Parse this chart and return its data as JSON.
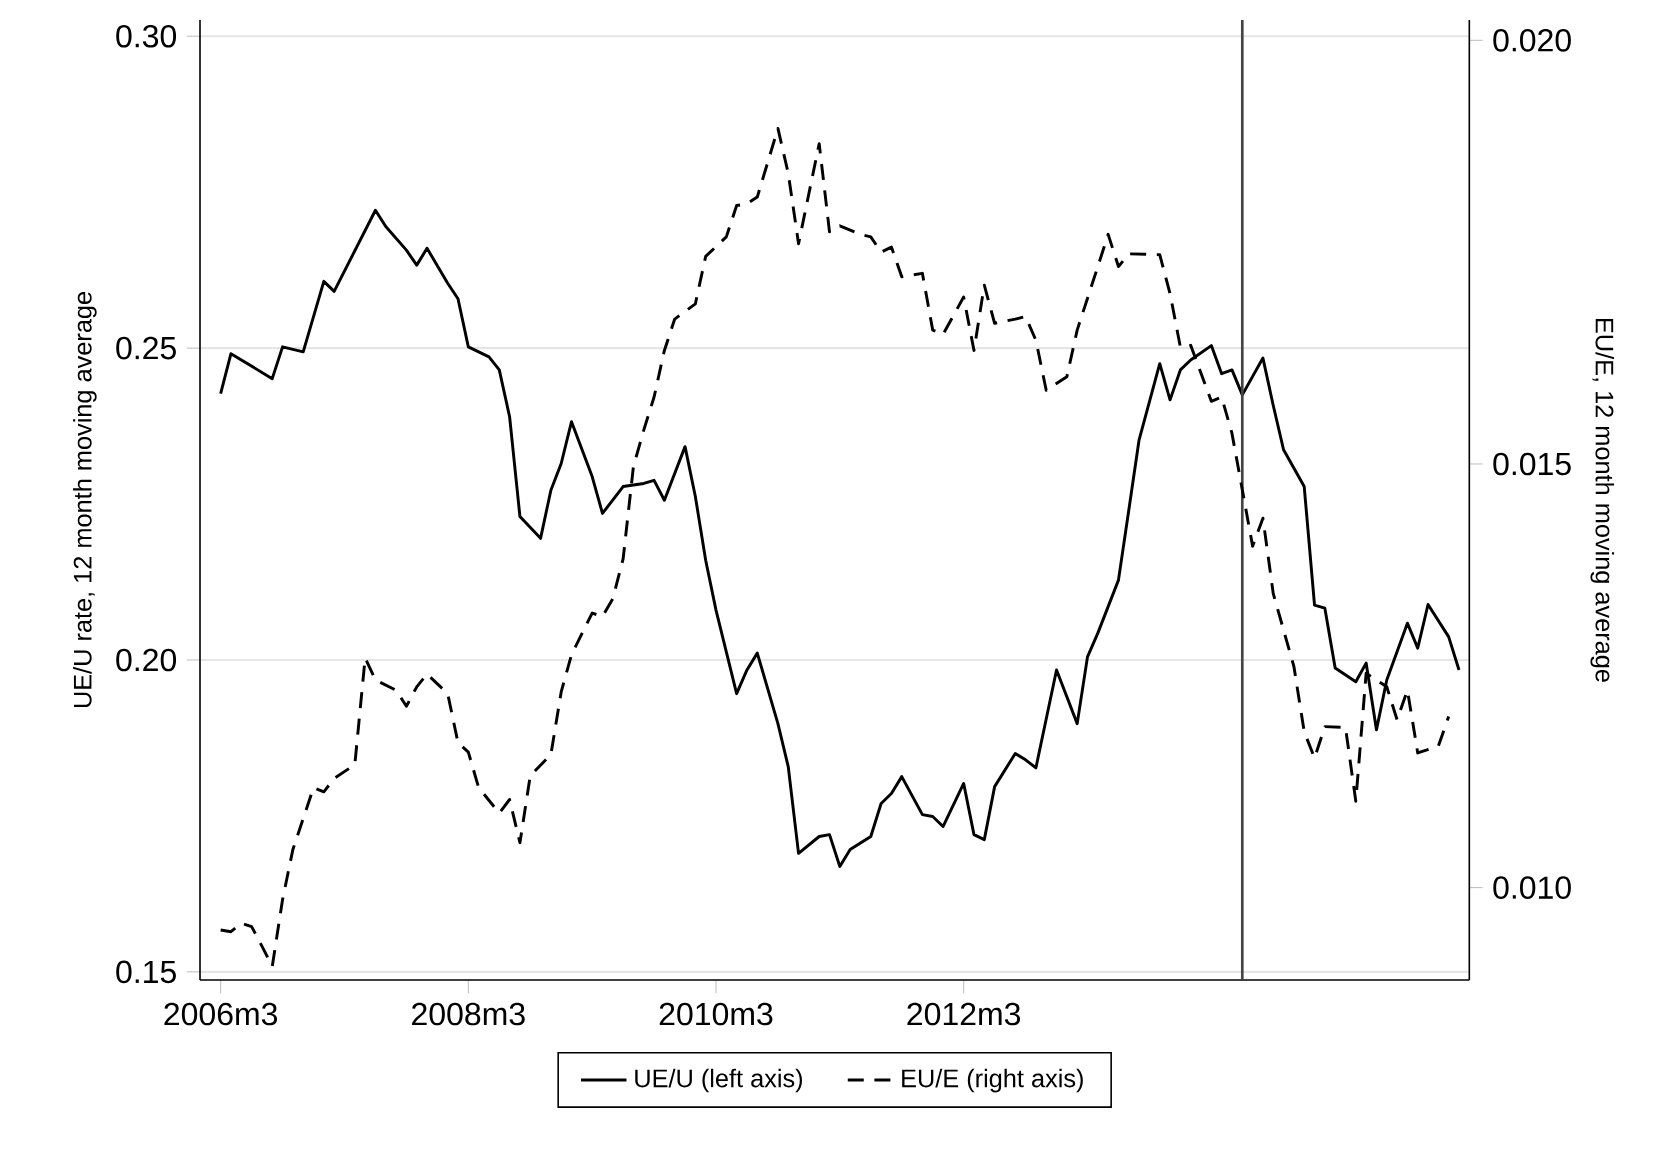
{
  "chart_data": {
    "type": "line",
    "xlim": [
      "2006-01",
      "2016-04"
    ],
    "xticks": [
      {
        "value": "2006-03",
        "label": "2006m3"
      },
      {
        "value": "2008-03",
        "label": "2008m3"
      },
      {
        "value": "2010-03",
        "label": "2010m3"
      },
      {
        "value": "2012-03",
        "label": "2012m3"
      }
    ],
    "ylim": [
      0.1487,
      0.3026
    ],
    "yticks": [
      {
        "value": 0.15,
        "label": "0.15"
      },
      {
        "value": 0.2,
        "label": "0.20"
      },
      {
        "value": 0.25,
        "label": "0.25"
      },
      {
        "value": 0.3,
        "label": "0.30"
      }
    ],
    "y2lim": [
      0.00891,
      0.02024
    ],
    "y2ticks": [
      {
        "value": 0.01,
        "label": "0.010"
      },
      {
        "value": 0.015,
        "label": "0.015"
      },
      {
        "value": 0.02,
        "label": "0.020"
      }
    ],
    "ylabel": "UE/U rate, 12 month moving average",
    "y2label": "EU/E, 12 month moving average",
    "grid": "y",
    "legend": "bottom",
    "ref_lines": [
      {
        "axis": "x",
        "value": "2014-06",
        "color": "#444444"
      }
    ],
    "series": [
      {
        "name": "UE/U (left axis)",
        "color": "#000000",
        "line_style": "solid",
        "x": [
          "2006-03",
          "2006-04",
          "2006-08",
          "2006-09",
          "2006-11",
          "2007-01",
          "2007-02",
          "2007-06",
          "2007-07",
          "2007-09",
          "2007-10",
          "2007-11",
          "2008-01",
          "2008-02",
          "2008-03",
          "2008-05",
          "2008-06",
          "2008-07",
          "2008-08",
          "2008-10",
          "2008-11",
          "2008-12",
          "2009-01",
          "2009-03",
          "2009-04",
          "2009-06",
          "2009-08",
          "2009-09",
          "2009-10",
          "2009-12",
          "2010-01",
          "2010-02",
          "2010-03",
          "2010-05",
          "2010-06",
          "2010-07",
          "2010-09",
          "2010-10",
          "2010-11",
          "2011-01",
          "2011-02",
          "2011-03",
          "2011-04",
          "2011-06",
          "2011-07",
          "2011-08",
          "2011-09",
          "2011-11",
          "2011-12",
          "2012-01",
          "2012-03",
          "2012-04",
          "2012-05",
          "2012-06",
          "2012-08",
          "2012-09",
          "2012-10",
          "2012-12",
          "2013-02",
          "2013-03",
          "2013-04",
          "2013-06",
          "2013-07",
          "2013-08",
          "2013-10",
          "2013-11",
          "2013-12",
          "2014-01",
          "2014-03",
          "2014-04",
          "2014-05",
          "2014-06",
          "2014-08",
          "2014-09",
          "2014-10",
          "2014-12",
          "2015-01",
          "2015-02",
          "2015-03",
          "2015-05",
          "2015-06",
          "2015-07",
          "2015-08",
          "2015-10",
          "2015-11",
          "2015-12",
          "2016-02",
          "2016-03"
        ],
        "values": [
          0.2427,
          0.2491,
          0.2451,
          0.2502,
          0.2494,
          0.2607,
          0.2591,
          0.2721,
          0.2695,
          0.2657,
          0.2633,
          0.266,
          0.2604,
          0.2579,
          0.2502,
          0.2486,
          0.2465,
          0.239,
          0.223,
          0.2195,
          0.2272,
          0.2315,
          0.2382,
          0.2294,
          0.2235,
          0.2278,
          0.2283,
          0.2288,
          0.2256,
          0.2342,
          0.2262,
          0.216,
          0.208,
          0.1946,
          0.1984,
          0.2011,
          0.1898,
          0.1829,
          0.169,
          0.1717,
          0.172,
          0.1669,
          0.1696,
          0.1717,
          0.177,
          0.1786,
          0.1813,
          0.1752,
          0.1749,
          0.1733,
          0.1802,
          0.172,
          0.1712,
          0.1797,
          0.185,
          0.184,
          0.1827,
          0.1984,
          0.1898,
          0.2005,
          0.2043,
          0.2128,
          0.224,
          0.2353,
          0.2475,
          0.2417,
          0.2465,
          0.2481,
          0.2504,
          0.2459,
          0.2465,
          0.2425,
          0.2484,
          0.2408,
          0.2337,
          0.2278,
          0.2088,
          0.2083,
          0.1987,
          0.1965,
          0.1995,
          0.1888,
          0.1968,
          0.2059,
          0.2019,
          0.2089,
          0.2037,
          0.1984
        ]
      },
      {
        "name": "EU/E (right axis)",
        "color": "#000000",
        "line_style": "dashed",
        "axis": "y2",
        "x": [
          "2006-03",
          "2006-04",
          "2006-05",
          "2006-06",
          "2006-07",
          "2006-08",
          "2006-09",
          "2006-10",
          "2006-12",
          "2007-01",
          "2007-02",
          "2007-04",
          "2007-05",
          "2007-06",
          "2007-08",
          "2007-09",
          "2007-10",
          "2007-11",
          "2008-01",
          "2008-02",
          "2008-03",
          "2008-04",
          "2008-06",
          "2008-07",
          "2008-08",
          "2008-09",
          "2008-11",
          "2008-12",
          "2009-01",
          "2009-03",
          "2009-04",
          "2009-05",
          "2009-06",
          "2009-07",
          "2009-08",
          "2009-09",
          "2009-10",
          "2009-11",
          "2010-01",
          "2010-02",
          "2010-04",
          "2010-05",
          "2010-06",
          "2010-07",
          "2010-09",
          "2010-10",
          "2010-11",
          "2011-01",
          "2011-02",
          "2011-03",
          "2011-05",
          "2011-06",
          "2011-07",
          "2011-08",
          "2011-09",
          "2011-11",
          "2011-12",
          "2012-01",
          "2012-03",
          "2012-04",
          "2012-05",
          "2012-06",
          "2012-08",
          "2012-09",
          "2012-10",
          "2012-11",
          "2013-01",
          "2013-02",
          "2013-04",
          "2013-05",
          "2013-06",
          "2013-07",
          "2013-10",
          "2013-11",
          "2013-12",
          "2014-01",
          "2014-03",
          "2014-04",
          "2014-05",
          "2014-07",
          "2014-08",
          "2014-09",
          "2014-11",
          "2014-12",
          "2015-01",
          "2015-02",
          "2015-04",
          "2015-05",
          "2015-06",
          "2015-08",
          "2015-09",
          "2015-10",
          "2015-11",
          "2016-01",
          "2016-02"
        ],
        "values": [
          0.0095,
          0.00948,
          0.00958,
          0.00954,
          0.00931,
          0.00907,
          0.00986,
          0.01045,
          0.01118,
          0.01113,
          0.01129,
          0.01145,
          0.01271,
          0.01245,
          0.01233,
          0.01214,
          0.01237,
          0.01252,
          0.01229,
          0.01171,
          0.0116,
          0.01118,
          0.01088,
          0.01104,
          0.01053,
          0.01132,
          0.01157,
          0.01231,
          0.01275,
          0.01324,
          0.0132,
          0.01341,
          0.01388,
          0.01497,
          0.0154,
          0.01579,
          0.01634,
          0.01671,
          0.01689,
          0.01745,
          0.01768,
          0.01805,
          0.01807,
          0.01815,
          0.01896,
          0.01843,
          0.0176,
          0.01878,
          0.01774,
          0.01781,
          0.01771,
          0.01768,
          0.0175,
          0.01756,
          0.01721,
          0.01725,
          0.01658,
          0.01653,
          0.01697,
          0.01634,
          0.01711,
          0.01666,
          0.01671,
          0.01674,
          0.01646,
          0.01587,
          0.01603,
          0.01658,
          0.01733,
          0.01771,
          0.01733,
          0.01748,
          0.01747,
          0.01701,
          0.01638,
          0.0164,
          0.01574,
          0.01579,
          0.01536,
          0.01403,
          0.01436,
          0.01347,
          0.01261,
          0.01184,
          0.01153,
          0.0119,
          0.01189,
          0.01102,
          0.01253,
          0.01237,
          0.01198,
          0.01233,
          0.01159,
          0.01167,
          0.01202
        ]
      }
    ]
  }
}
